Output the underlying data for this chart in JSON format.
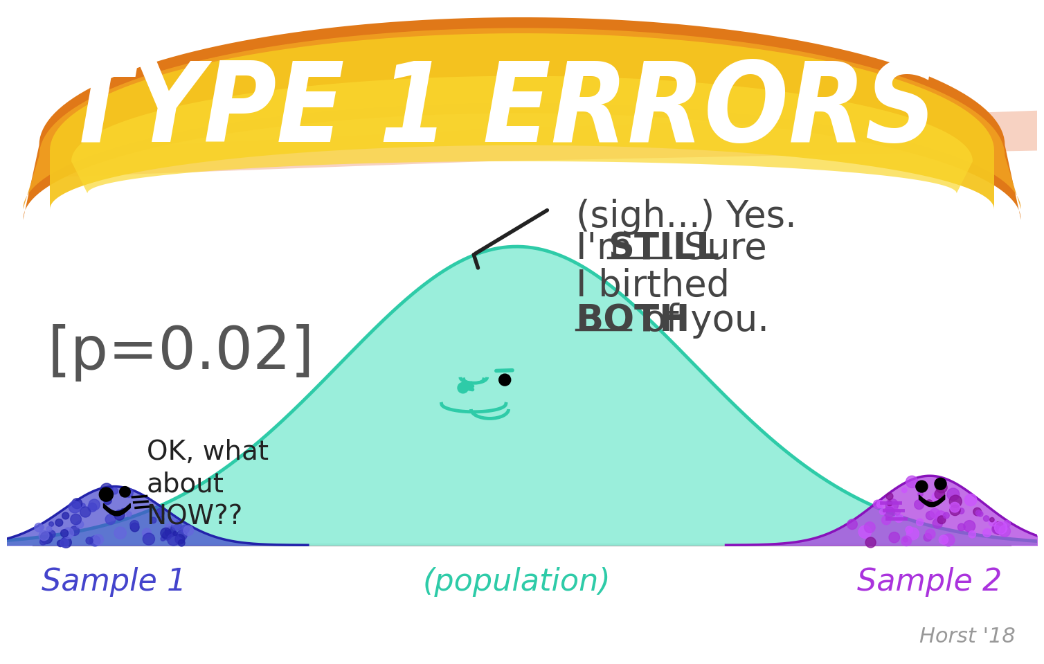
{
  "bg_color": "#ffffff",
  "banner_text": "TYPE 1 ERRORS",
  "banner_text_color": "#ffffff",
  "population_color": "#8fedd8",
  "population_edge_color": "#2ecba8",
  "population_label": "(population)",
  "population_label_color": "#2ecba8",
  "sample1_color": "#4444cc",
  "sample1_edge_color": "#2222aa",
  "sample1_label": "Sample 1",
  "sample2_color": "#aa33dd",
  "sample2_edge_color": "#8811bb",
  "sample2_label": "Sample 2",
  "p_value_text": "[p=0.02]",
  "p_value_color": "#555555",
  "speech_line1": "(sigh...) Yes.",
  "speech_line2": "I'm STILL Sure",
  "speech_line3": "I birthed",
  "speech_line4": "BOTH of you.",
  "speech_text_color": "#444444",
  "sample1_speech": "OK, what\nabout\nNOW??",
  "sample1_speech_color": "#222222",
  "baseline_color": "#aaaaaa",
  "author_text": "Horst '18",
  "author_color": "#999999",
  "dot_colors_sample1": [
    "#4444cc",
    "#2222aa",
    "#6666dd",
    "#3333bb"
  ],
  "dot_colors_sample2": [
    "#aa33dd",
    "#cc55ff",
    "#881199",
    "#bb44ee"
  ]
}
